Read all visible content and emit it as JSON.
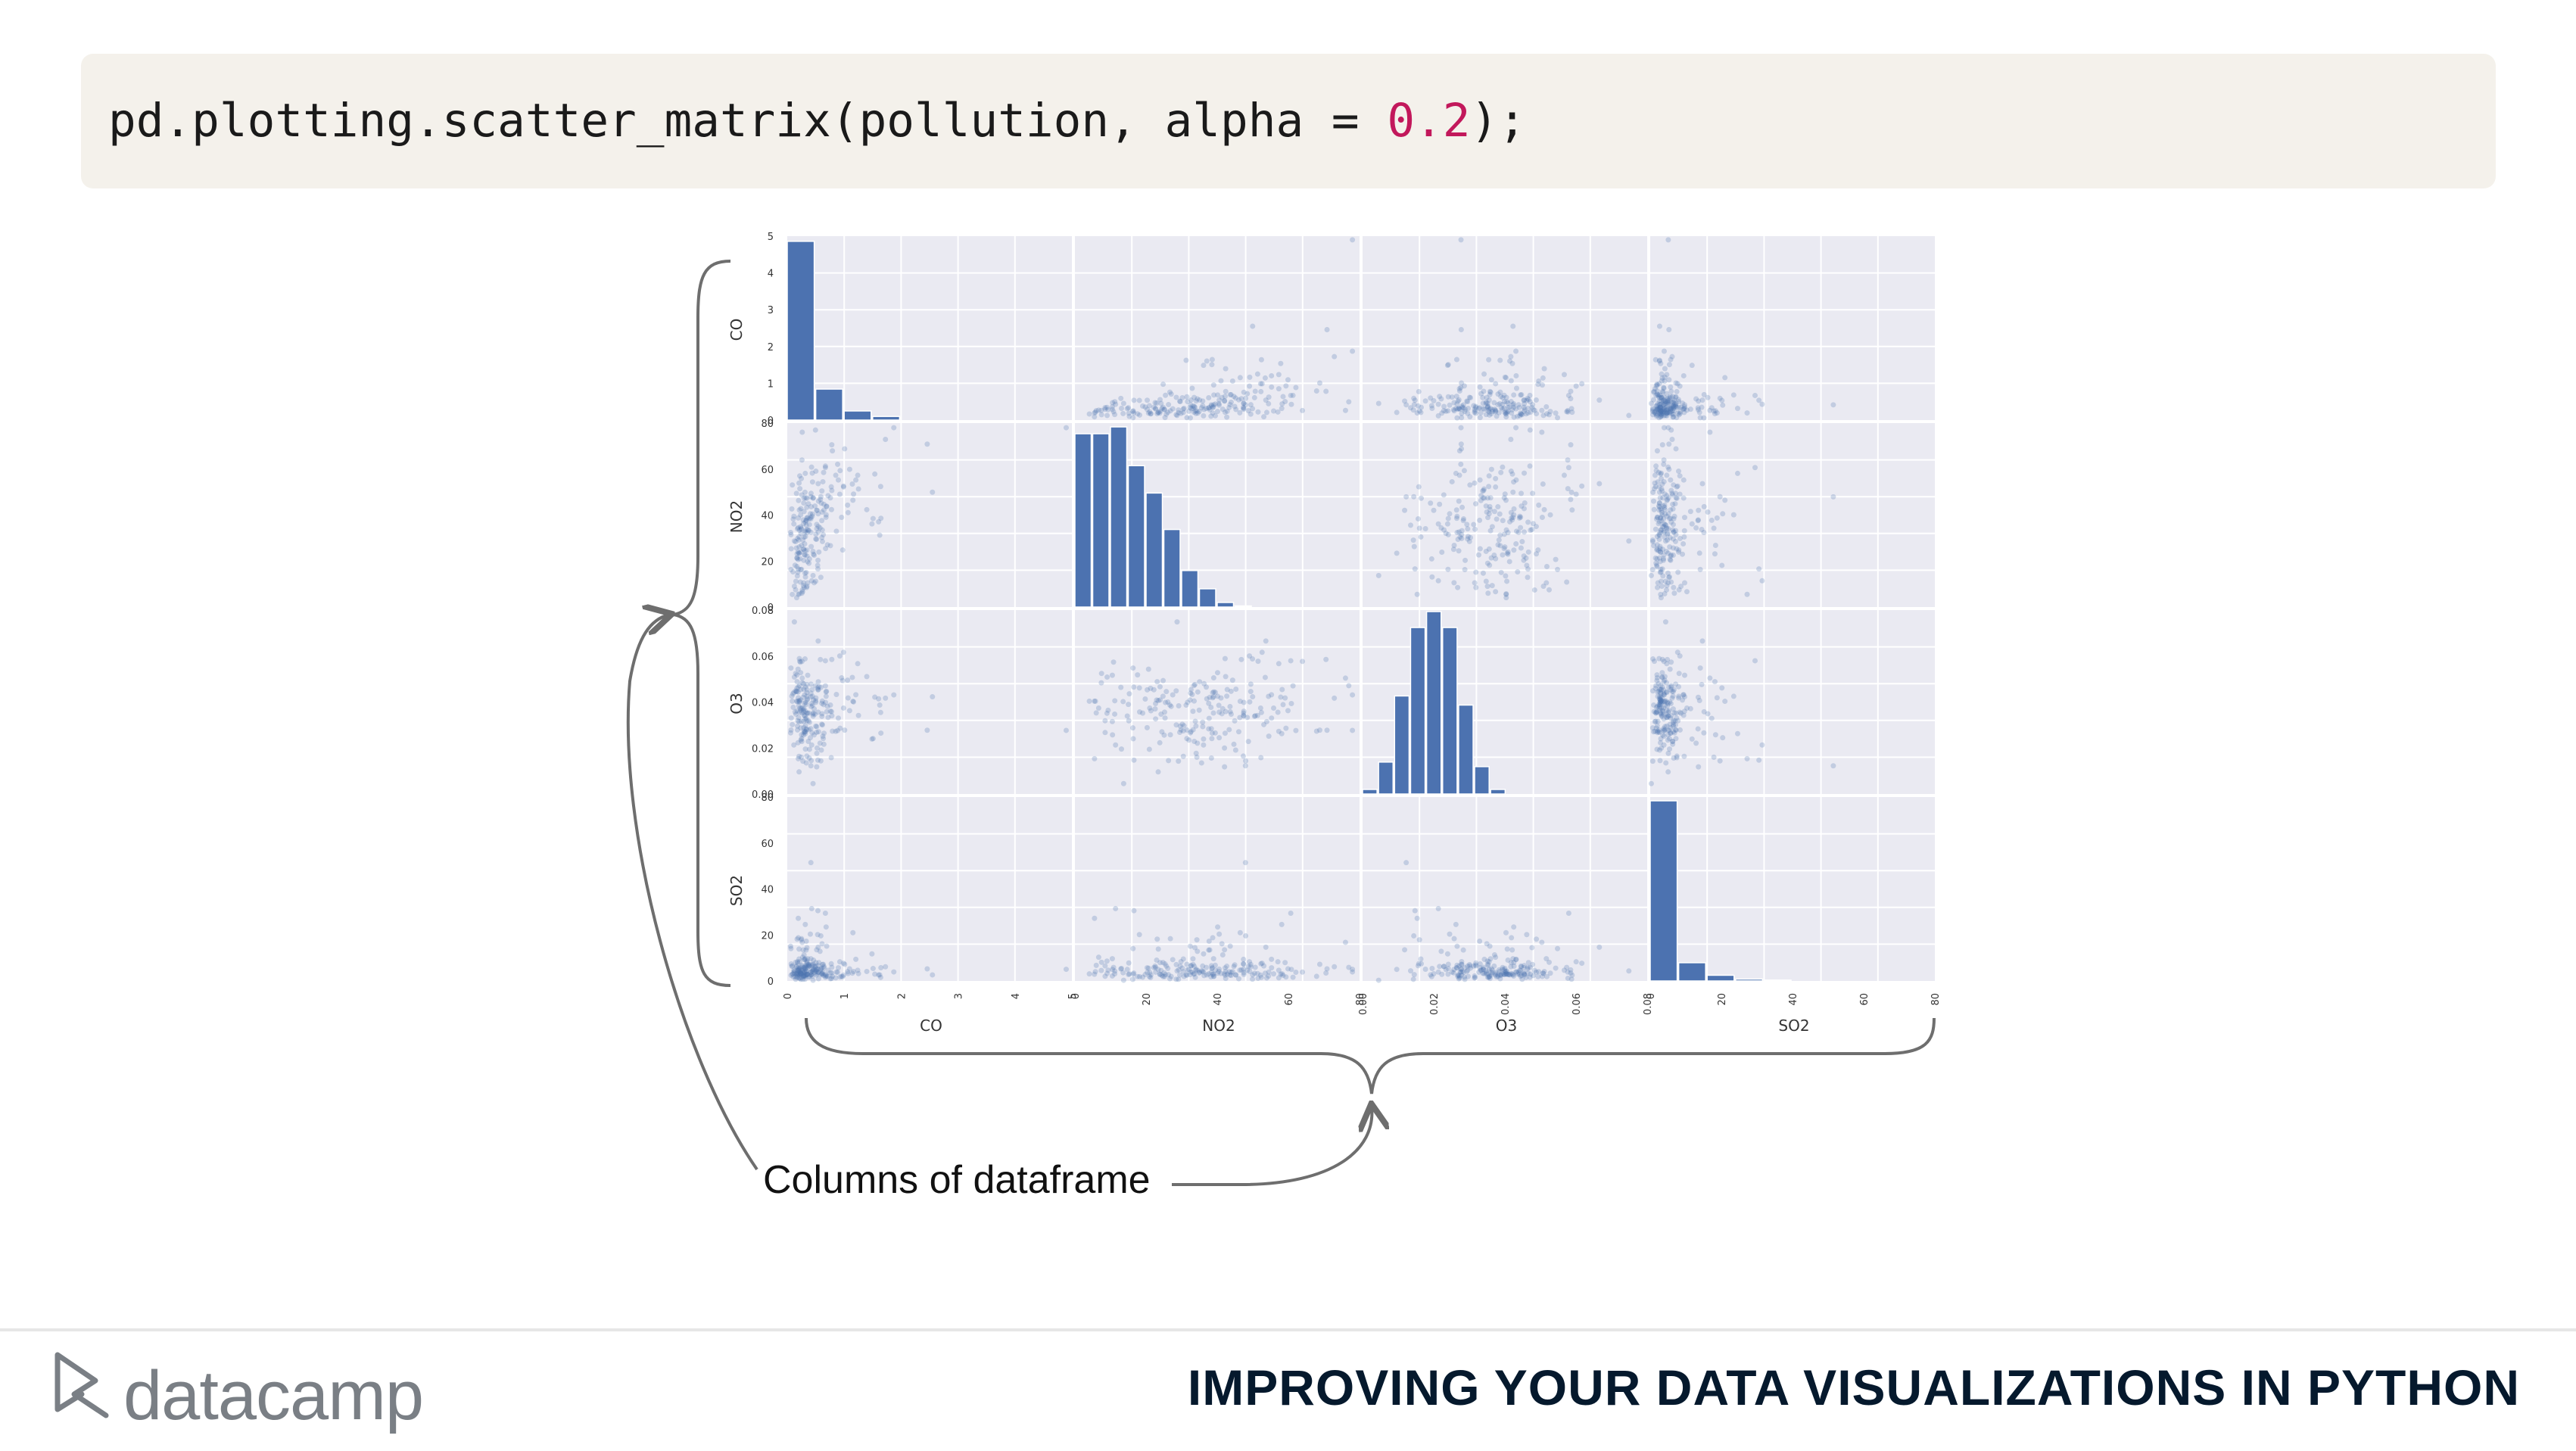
{
  "code": {
    "prefix": "pd.plotting.scatter_matrix(pollution, alpha = ",
    "value": "0.2",
    "suffix": ");"
  },
  "annotation": "Columns of dataframe",
  "footer": {
    "brand": "datacamp",
    "course_title": "IMPROVING YOUR DATA VISUALIZATIONS IN PYTHON"
  },
  "colors": {
    "marker": "#4c72b0",
    "panel_bg": "#eaeaf2",
    "grid": "#ffffff",
    "code_bg": "#f4f1eb",
    "code_number": "#c2185b",
    "footer_title": "#05192d"
  },
  "icons": {
    "logo": "datacamp-logo-icon"
  },
  "chart_data": {
    "type": "scatter",
    "subtype": "scatter_matrix",
    "alpha": 0.2,
    "variables": [
      "CO",
      "NO2",
      "O3",
      "SO2"
    ],
    "ranges": {
      "CO": [
        0,
        5
      ],
      "NO2": [
        0,
        80
      ],
      "O3": [
        0,
        0.08
      ],
      "SO2": [
        0,
        80
      ]
    },
    "xticks": {
      "CO": [
        "0",
        "1",
        "2",
        "3",
        "4",
        "5"
      ],
      "NO2": [
        "0",
        "20",
        "40",
        "60",
        "80"
      ],
      "O3": [
        "0.00",
        "0.02",
        "0.04",
        "0.06",
        "0.08"
      ],
      "SO2": [
        "0",
        "20",
        "40",
        "60",
        "80"
      ]
    },
    "yticks": {
      "CO": [
        "0",
        "1",
        "2",
        "3",
        "4",
        "5"
      ],
      "NO2": [
        "0",
        "20",
        "40",
        "60",
        "80"
      ],
      "O3": [
        "0.00",
        "0.02",
        "0.04",
        "0.06",
        "0.08"
      ],
      "SO2": [
        "0",
        "20",
        "40",
        "60",
        "80"
      ]
    },
    "histograms": {
      "CO": [
        {
          "x0": 0,
          "x1": 0.5,
          "n": 4.9
        },
        {
          "x0": 0.5,
          "x1": 1.0,
          "n": 0.85
        },
        {
          "x0": 1.0,
          "x1": 1.5,
          "n": 0.25
        },
        {
          "x0": 1.5,
          "x1": 2.0,
          "n": 0.1
        }
      ],
      "NO2": [
        {
          "x0": 0,
          "x1": 5,
          "n": 76
        },
        {
          "x0": 5,
          "x1": 10,
          "n": 76
        },
        {
          "x0": 10,
          "x1": 15,
          "n": 79
        },
        {
          "x0": 15,
          "x1": 20,
          "n": 62
        },
        {
          "x0": 20,
          "x1": 25,
          "n": 50
        },
        {
          "x0": 25,
          "x1": 30,
          "n": 34
        },
        {
          "x0": 30,
          "x1": 35,
          "n": 16
        },
        {
          "x0": 35,
          "x1": 40,
          "n": 8
        },
        {
          "x0": 40,
          "x1": 45,
          "n": 2
        },
        {
          "x0": 45,
          "x1": 50,
          "n": 0.5
        }
      ],
      "O3": [
        {
          "x0": 0.0,
          "x1": 0.0045,
          "n": 0.002
        },
        {
          "x0": 0.0045,
          "x1": 0.009,
          "n": 0.014
        },
        {
          "x0": 0.009,
          "x1": 0.0135,
          "n": 0.043
        },
        {
          "x0": 0.0135,
          "x1": 0.018,
          "n": 0.073
        },
        {
          "x0": 0.018,
          "x1": 0.0225,
          "n": 0.08
        },
        {
          "x0": 0.0225,
          "x1": 0.027,
          "n": 0.073
        },
        {
          "x0": 0.027,
          "x1": 0.0315,
          "n": 0.039
        },
        {
          "x0": 0.0315,
          "x1": 0.036,
          "n": 0.012
        },
        {
          "x0": 0.036,
          "x1": 0.0405,
          "n": 0.002
        }
      ],
      "SO2": [
        {
          "x0": 0,
          "x1": 8,
          "n": 79
        },
        {
          "x0": 8,
          "x1": 16,
          "n": 8
        },
        {
          "x0": 16,
          "x1": 24,
          "n": 2.5
        },
        {
          "x0": 24,
          "x1": 32,
          "n": 0.8
        },
        {
          "x0": 32,
          "x1": 40,
          "n": 0.4
        }
      ]
    },
    "scatter_summary": {
      "CO": {
        "center": 0.4,
        "spread": 0.35
      },
      "NO2": {
        "center": 25,
        "spread": 14
      },
      "O3": {
        "center": 0.037,
        "spread": 0.012
      },
      "SO2": {
        "center": 5,
        "spread": 6
      }
    },
    "grid": true
  }
}
